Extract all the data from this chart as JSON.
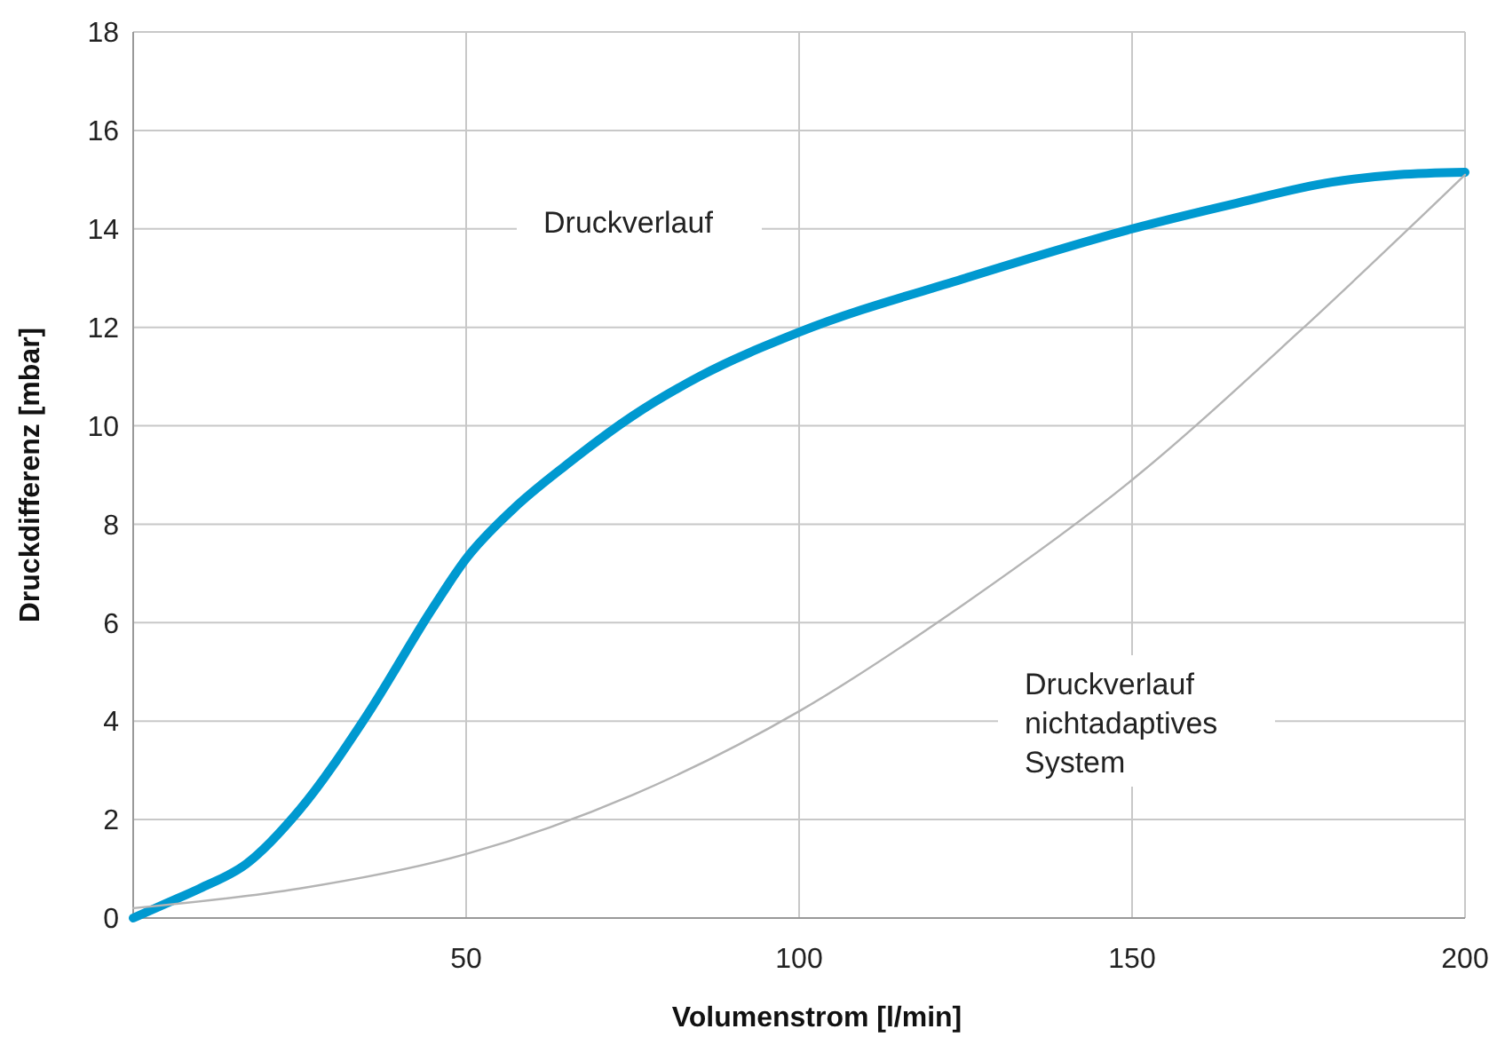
{
  "chart_data": {
    "type": "line",
    "xlabel": "Volumenstrom [l/min]",
    "ylabel": "Druckdifferenz [mbar]",
    "xlim": [
      0,
      200
    ],
    "xticks": [
      50,
      100,
      150,
      200
    ],
    "ylim": [
      0,
      18
    ],
    "yticks": [
      0,
      2,
      4,
      6,
      8,
      10,
      12,
      14,
      16,
      18
    ],
    "grid": true,
    "series": [
      {
        "color": "#0099d0",
        "x": [
          0,
          5,
          10,
          17,
          25,
          35,
          45,
          50,
          57,
          65,
          75,
          85,
          100,
          125,
          150,
          165,
          180,
          190,
          200
        ],
        "values": [
          0,
          0.3,
          0.6,
          1.1,
          2.2,
          4.1,
          6.3,
          7.3,
          8.3,
          9.2,
          10.2,
          11.0,
          11.9,
          13.0,
          14.0,
          14.5,
          14.95,
          15.1,
          15.15
        ]
      },
      {
        "color": "#b4b4b4",
        "x": [
          0,
          25,
          50,
          75,
          100,
          125,
          150,
          175,
          200
        ],
        "values": [
          0.2,
          0.6,
          1.3,
          2.5,
          4.2,
          6.4,
          8.9,
          11.9,
          15.1
        ]
      }
    ],
    "annotations": [
      "Druckverlauf",
      "Druckverlauf\nnichtadaptives\nSystem"
    ]
  }
}
